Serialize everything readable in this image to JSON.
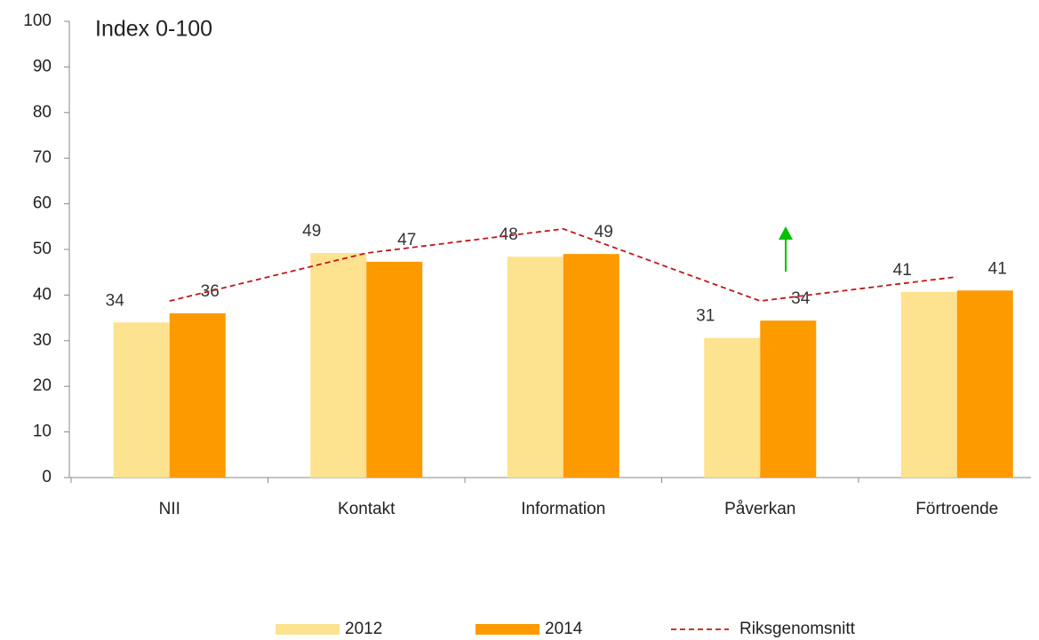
{
  "chart_data": {
    "type": "bar",
    "title": "Index 0-100",
    "categories": [
      "NII",
      "Kontakt",
      "Information",
      "Påverkan",
      "Förtroende"
    ],
    "series": [
      {
        "name": "2012",
        "color": "#fde28f",
        "values": [
          34,
          49.2,
          48.4,
          30.6,
          40.7
        ],
        "value_labels": [
          "34",
          "49",
          "48",
          "31",
          "41"
        ]
      },
      {
        "name": "2014",
        "color": "#fd9a00",
        "values": [
          36,
          47.3,
          49,
          34.4,
          41
        ],
        "value_labels": [
          "36",
          "47",
          "49",
          "34",
          "41"
        ]
      },
      {
        "name": "Riksgenomsnitt",
        "type": "line",
        "color": "#c0171b",
        "dashed": true,
        "values": [
          38.7,
          49.2,
          54.5,
          38.7,
          44
        ]
      }
    ],
    "ylim": [
      0,
      100
    ],
    "yticks": [
      0,
      10,
      20,
      30,
      40,
      50,
      60,
      70,
      80,
      90,
      100
    ],
    "grid": false,
    "legend": "bottom"
  }
}
